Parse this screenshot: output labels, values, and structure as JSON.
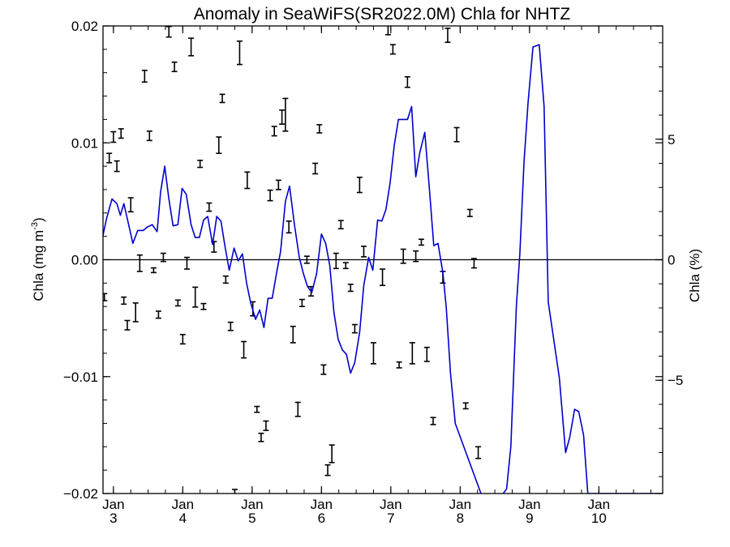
{
  "chart_data": {
    "type": "line",
    "title": "Anomaly in SeaWiFS(SR2022.0M) Chla for NHTZ",
    "ylabel": "Chla (mg m",
    "ylabel_sup": "-3",
    "ylabel_close": ")",
    "y2label": "Chla (%)",
    "ylim": [
      -0.02,
      0.02
    ],
    "y2lim": [
      -9.7,
      9.7
    ],
    "yticks": [
      {
        "value": -0.02,
        "label": "−0.02"
      },
      {
        "value": -0.01,
        "label": "−0.01"
      },
      {
        "value": 0.0,
        "label": "0.00"
      },
      {
        "value": 0.01,
        "label": "0.01"
      },
      {
        "value": 0.02,
        "label": "0.02"
      }
    ],
    "y2ticks": [
      {
        "value": -5,
        "label": "−5"
      },
      {
        "value": 0,
        "label": "0"
      },
      {
        "value": 5,
        "label": "5"
      }
    ],
    "xlim": [
      2.85,
      10.92
    ],
    "xticks": [
      {
        "value": 3,
        "month": "Jan",
        "year": "3"
      },
      {
        "value": 4,
        "month": "Jan",
        "year": "4"
      },
      {
        "value": 5,
        "month": "Jan",
        "year": "5"
      },
      {
        "value": 6,
        "month": "Jan",
        "year": "6"
      },
      {
        "value": 7,
        "month": "Jan",
        "year": "7"
      },
      {
        "value": 8,
        "month": "Jan",
        "year": "8"
      },
      {
        "value": 9,
        "month": "Jan",
        "year": "9"
      },
      {
        "value": 10,
        "month": "Jan",
        "year": "10"
      }
    ],
    "zero_line": 0,
    "line_color": "#0000cc",
    "errorbar_color": "#000000",
    "line_series": {
      "x": [
        2.84,
        2.9,
        2.98,
        3.05,
        3.1,
        3.15,
        3.22,
        3.28,
        3.35,
        3.43,
        3.49,
        3.56,
        3.63,
        3.68,
        3.74,
        3.8,
        3.86,
        3.93,
        3.99,
        4.05,
        4.12,
        4.18,
        4.24,
        4.3,
        4.36,
        4.43,
        4.49,
        4.55,
        4.61,
        4.67,
        4.74,
        4.8,
        4.86,
        4.92,
        4.98,
        5.05,
        5.11,
        5.17,
        5.23,
        5.29,
        5.35,
        5.41,
        5.48,
        5.54,
        5.61,
        5.68,
        5.74,
        5.8,
        5.86,
        5.93,
        6.0,
        6.06,
        6.12,
        6.18,
        6.24,
        6.3,
        6.36,
        6.42,
        6.48,
        6.55,
        6.61,
        6.68,
        6.74,
        6.81,
        6.87,
        6.93,
        6.99,
        7.05,
        7.11,
        7.17,
        7.24,
        7.3,
        7.36,
        7.42,
        7.49,
        7.55,
        7.62,
        7.68,
        7.75,
        7.8,
        7.86,
        7.93,
        8.3,
        8.38,
        8.5,
        8.67,
        8.73,
        8.81,
        8.86,
        8.92,
        8.98,
        9.05,
        9.14,
        9.21,
        9.27,
        9.43,
        9.52,
        9.58,
        9.65,
        9.71,
        9.78,
        9.84,
        9.9,
        9.96,
        10.02,
        10.08,
        10.14,
        10.2,
        10.26,
        10.32,
        10.38,
        10.44,
        10.5,
        10.54,
        10.6,
        10.65,
        10.7,
        10.76,
        10.82,
        10.88,
        10.92
      ],
      "y": [
        0.0018,
        0.0035,
        0.0052,
        0.0048,
        0.0038,
        0.0048,
        0.003,
        0.0014,
        0.0025,
        0.0025,
        0.0028,
        0.003,
        0.0024,
        0.0058,
        0.008,
        0.0052,
        0.0029,
        0.003,
        0.0061,
        0.0056,
        0.003,
        0.0019,
        0.0019,
        0.0034,
        0.0037,
        0.0013,
        0.0037,
        0.0033,
        0.0011,
        -0.0009,
        0.001,
        -0.0001,
        0.0005,
        -0.002,
        -0.0037,
        -0.0051,
        -0.0043,
        -0.0058,
        -0.0033,
        -0.0033,
        -0.0012,
        0.0007,
        0.005,
        0.0063,
        0.003,
        0.0002,
        -0.0012,
        -0.0023,
        -0.0028,
        -0.0012,
        0.0022,
        0.0014,
        -0.0005,
        -0.0045,
        -0.0068,
        -0.0077,
        -0.0081,
        -0.0097,
        -0.0088,
        -0.0062,
        -0.0022,
        0.0002,
        -0.0009,
        0.0034,
        0.0033,
        0.0043,
        0.0066,
        0.0098,
        0.012,
        0.012,
        0.012,
        0.0131,
        0.0071,
        0.0092,
        0.0109,
        0.0065,
        0.0012,
        0.0014,
        -0.0011,
        -0.0041,
        -0.0097,
        -0.014,
        -0.02,
        -0.022,
        -0.021,
        -0.0196,
        -0.016,
        -0.004,
        0.0005,
        0.0083,
        0.0135,
        0.0182,
        0.0184,
        0.0131,
        -0.0036,
        -0.0101,
        -0.0165,
        -0.0152,
        -0.0128,
        -0.013,
        -0.015,
        -0.02,
        -0.02,
        -0.02,
        -0.02,
        -0.02,
        -0.02,
        -0.02,
        -0.02,
        -0.02,
        -0.02,
        -0.02,
        -0.02,
        -0.02,
        -0.02,
        -0.02,
        -0.02,
        -0.02,
        -0.02,
        -0.02,
        -0.02
      ]
    },
    "error_bars": [
      {
        "x": 2.87,
        "y": -0.0032,
        "h": 0.0006
      },
      {
        "x": 2.94,
        "y": 0.0087,
        "h": 0.0008
      },
      {
        "x": 3.0,
        "y": 0.0105,
        "h": 0.0009
      },
      {
        "x": 3.05,
        "y": 0.008,
        "h": 0.0009
      },
      {
        "x": 3.11,
        "y": 0.0108,
        "h": 0.0008
      },
      {
        "x": 3.15,
        "y": -0.0035,
        "h": 0.0006
      },
      {
        "x": 3.2,
        "y": -0.0056,
        "h": 0.0008
      },
      {
        "x": 3.25,
        "y": 0.0047,
        "h": 0.0012
      },
      {
        "x": 3.32,
        "y": -0.0045,
        "h": 0.0016
      },
      {
        "x": 3.38,
        "y": -0.0003,
        "h": 0.0014
      },
      {
        "x": 3.45,
        "y": 0.0157,
        "h": 0.001
      },
      {
        "x": 3.52,
        "y": 0.0106,
        "h": 0.0008
      },
      {
        "x": 3.58,
        "y": -0.0009,
        "h": 0.0004
      },
      {
        "x": 3.65,
        "y": -0.0047,
        "h": 0.0006
      },
      {
        "x": 3.72,
        "y": 0.0002,
        "h": 0.0007
      },
      {
        "x": 3.8,
        "y": 0.0195,
        "h": 0.0009
      },
      {
        "x": 3.88,
        "y": 0.0165,
        "h": 0.0008
      },
      {
        "x": 3.93,
        "y": -0.0037,
        "h": 0.0005
      },
      {
        "x": 4.0,
        "y": -0.0068,
        "h": 0.0008
      },
      {
        "x": 4.06,
        "y": -0.0003,
        "h": 0.001
      },
      {
        "x": 4.12,
        "y": 0.0182,
        "h": 0.0015
      },
      {
        "x": 4.18,
        "y": -0.0032,
        "h": 0.0017
      },
      {
        "x": 4.25,
        "y": 0.0082,
        "h": 0.0006
      },
      {
        "x": 4.3,
        "y": -0.004,
        "h": 0.0005
      },
      {
        "x": 4.38,
        "y": 0.0045,
        "h": 0.0007
      },
      {
        "x": 4.45,
        "y": 0.0011,
        "h": 0.0009
      },
      {
        "x": 4.52,
        "y": 0.0098,
        "h": 0.0014
      },
      {
        "x": 4.57,
        "y": 0.0138,
        "h": 0.0007
      },
      {
        "x": 4.62,
        "y": -0.0017,
        "h": 0.0006
      },
      {
        "x": 4.69,
        "y": -0.0057,
        "h": 0.0007
      },
      {
        "x": 4.75,
        "y": -0.02,
        "h": 0.0007
      },
      {
        "x": 4.82,
        "y": 0.0177,
        "h": 0.002
      },
      {
        "x": 4.88,
        "y": -0.0077,
        "h": 0.0014
      },
      {
        "x": 4.93,
        "y": 0.0068,
        "h": 0.0014
      },
      {
        "x": 5.01,
        "y": -0.0042,
        "h": 0.0012
      },
      {
        "x": 5.07,
        "y": -0.0128,
        "h": 0.0005
      },
      {
        "x": 5.13,
        "y": -0.0152,
        "h": 0.0007
      },
      {
        "x": 5.2,
        "y": -0.0142,
        "h": 0.0008
      },
      {
        "x": 5.26,
        "y": 0.0055,
        "h": 0.0009
      },
      {
        "x": 5.32,
        "y": 0.011,
        "h": 0.0008
      },
      {
        "x": 5.38,
        "y": 0.0064,
        "h": 0.0008
      },
      {
        "x": 5.43,
        "y": 0.0122,
        "h": 0.0012
      },
      {
        "x": 5.48,
        "y": 0.0124,
        "h": 0.0028
      },
      {
        "x": 5.53,
        "y": 0.0028,
        "h": 0.001
      },
      {
        "x": 5.59,
        "y": -0.0064,
        "h": 0.0014
      },
      {
        "x": 5.66,
        "y": -0.0128,
        "h": 0.0012
      },
      {
        "x": 5.72,
        "y": -0.0037,
        "h": 0.0006
      },
      {
        "x": 5.79,
        "y": 0.0,
        "h": 0.0006
      },
      {
        "x": 5.85,
        "y": -0.0027,
        "h": 0.0008
      },
      {
        "x": 5.91,
        "y": 0.0078,
        "h": 0.0009
      },
      {
        "x": 5.97,
        "y": 0.0112,
        "h": 0.0007
      },
      {
        "x": 6.03,
        "y": -0.0094,
        "h": 0.0008
      },
      {
        "x": 6.09,
        "y": -0.018,
        "h": 0.0009
      },
      {
        "x": 6.15,
        "y": -0.0166,
        "h": 0.0015
      },
      {
        "x": 6.21,
        "y": -0.0001,
        "h": 0.0013
      },
      {
        "x": 6.28,
        "y": 0.003,
        "h": 0.0007
      },
      {
        "x": 6.35,
        "y": -0.0005,
        "h": 0.0005
      },
      {
        "x": 6.42,
        "y": -0.0024,
        "h": 0.0006
      },
      {
        "x": 6.48,
        "y": -0.0059,
        "h": 0.0007
      },
      {
        "x": 6.55,
        "y": 0.0064,
        "h": 0.0013
      },
      {
        "x": 6.61,
        "y": 0.0007,
        "h": 0.0009
      },
      {
        "x": 6.75,
        "y": -0.008,
        "h": 0.0018
      },
      {
        "x": 6.88,
        "y": -0.0015,
        "h": 0.0014
      },
      {
        "x": 6.96,
        "y": 0.0197,
        "h": 0.0009
      },
      {
        "x": 7.03,
        "y": 0.018,
        "h": 0.0008
      },
      {
        "x": 7.12,
        "y": -0.009,
        "h": 0.0005
      },
      {
        "x": 7.18,
        "y": 0.0003,
        "h": 0.0012
      },
      {
        "x": 7.24,
        "y": 0.0152,
        "h": 0.0009
      },
      {
        "x": 7.31,
        "y": -0.008,
        "h": 0.0018
      },
      {
        "x": 7.36,
        "y": 0.0003,
        "h": 0.0009
      },
      {
        "x": 7.44,
        "y": 0.0015,
        "h": 0.0005
      },
      {
        "x": 7.52,
        "y": -0.0081,
        "h": 0.0012
      },
      {
        "x": 7.61,
        "y": -0.0138,
        "h": 0.0006
      },
      {
        "x": 7.75,
        "y": -0.0015,
        "h": 0.001
      },
      {
        "x": 7.82,
        "y": 0.0192,
        "h": 0.0012
      },
      {
        "x": 7.95,
        "y": 0.0107,
        "h": 0.0012
      },
      {
        "x": 8.08,
        "y": -0.0125,
        "h": 0.0005
      },
      {
        "x": 8.14,
        "y": 0.004,
        "h": 0.0006
      },
      {
        "x": 8.2,
        "y": -0.0003,
        "h": 0.0008
      },
      {
        "x": 8.26,
        "y": -0.0165,
        "h": 0.001
      }
    ]
  }
}
